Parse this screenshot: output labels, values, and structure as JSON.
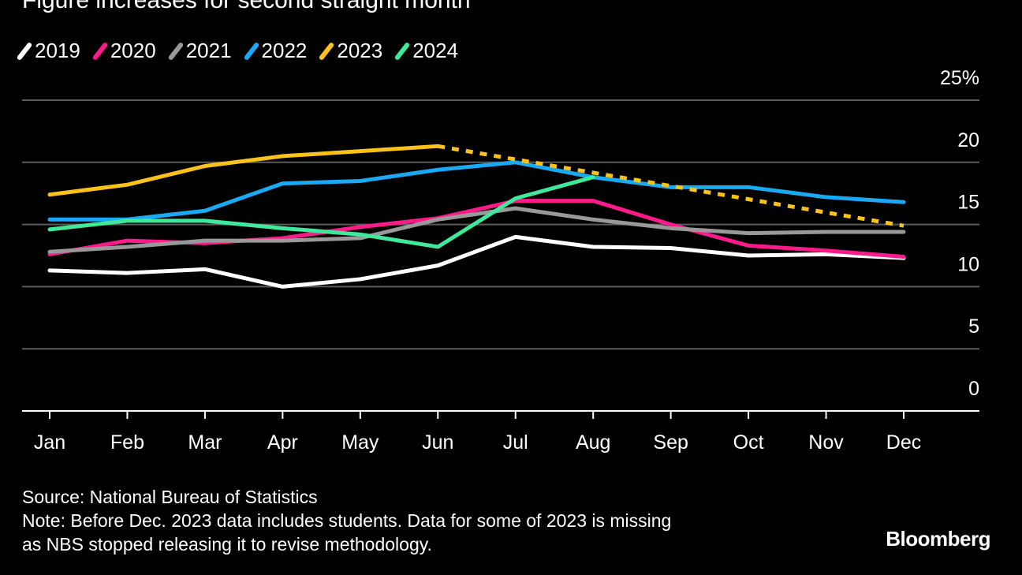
{
  "chart_data": {
    "type": "line",
    "title": "Figure increases for second straight month",
    "categories": [
      "Jan",
      "Feb",
      "Mar",
      "Apr",
      "May",
      "Jun",
      "Jul",
      "Aug",
      "Sep",
      "Oct",
      "Nov",
      "Dec"
    ],
    "ylim": [
      0,
      25
    ],
    "yticks": [
      0,
      5,
      10,
      15,
      20,
      25
    ],
    "ytick_labels": [
      "0",
      "5",
      "10",
      "15",
      "20",
      "25%"
    ],
    "grid": true,
    "legend_position": "top-left",
    "series": [
      {
        "name": "2019",
        "color": "#ffffff",
        "values": [
          11.3,
          11.1,
          11.4,
          10.0,
          10.6,
          11.7,
          14.0,
          13.2,
          13.1,
          12.5,
          12.6,
          12.3
        ]
      },
      {
        "name": "2020",
        "color": "#ff1a8c",
        "values": [
          12.6,
          13.7,
          13.5,
          13.9,
          14.8,
          15.5,
          16.9,
          16.9,
          15.0,
          13.3,
          12.9,
          12.4
        ]
      },
      {
        "name": "2021",
        "color": "#999999",
        "values": [
          12.8,
          13.2,
          13.7,
          13.7,
          13.9,
          15.4,
          16.3,
          15.4,
          14.7,
          14.3,
          14.4,
          14.4
        ]
      },
      {
        "name": "2022",
        "color": "#1aaaf5",
        "values": [
          15.4,
          15.4,
          16.1,
          18.3,
          18.5,
          19.4,
          20.0,
          18.8,
          18.0,
          18.0,
          17.2,
          16.8
        ]
      },
      {
        "name": "2023",
        "color": "#fbc21b",
        "values": [
          17.4,
          18.2,
          19.7,
          20.5,
          20.9,
          21.3,
          null,
          null,
          null,
          null,
          null,
          14.9
        ],
        "missing_shown_dashed": true
      },
      {
        "name": "2024",
        "color": "#3fe89a",
        "values": [
          14.6,
          15.3,
          15.3,
          14.7,
          14.2,
          13.2,
          17.1,
          18.8,
          null,
          null,
          null,
          null
        ]
      }
    ]
  },
  "footer": {
    "source": "Source: National Bureau of Statistics",
    "note_line1": "Note: Before Dec. 2023 data includes students. Data for some of 2023 is missing",
    "note_line2": "as NBS stopped releasing it to revise methodology."
  },
  "brand": "Bloomberg"
}
